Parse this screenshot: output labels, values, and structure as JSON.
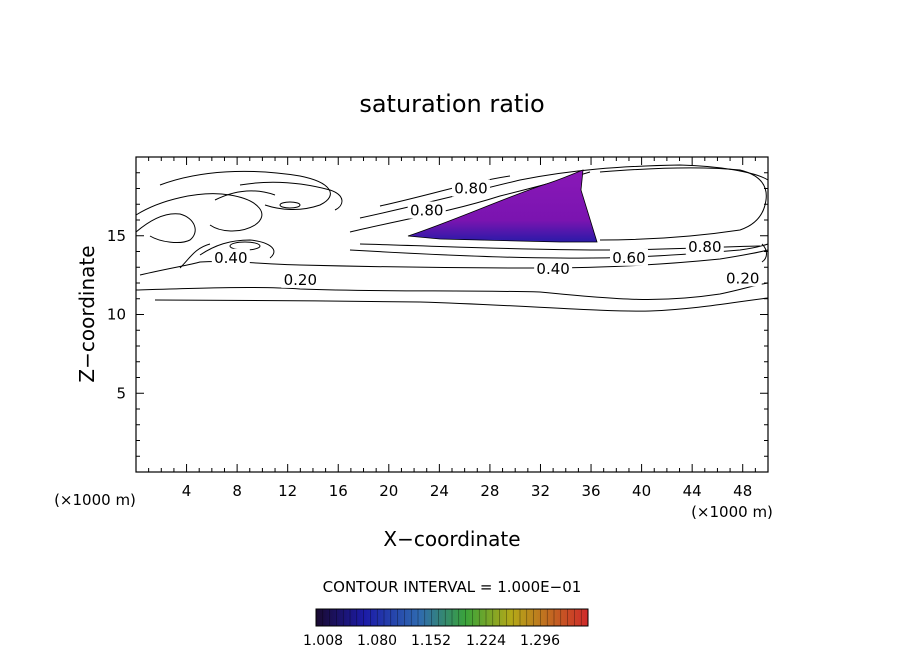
{
  "chart_data": {
    "type": "contour",
    "title": "saturation ratio",
    "xlabel": "X−coordinate",
    "ylabel": "Z−coordinate",
    "x_unit": "(×1000 m)",
    "x_unit_right": "(×1000 m)",
    "xlim": [
      0,
      50
    ],
    "ylim": [
      0,
      20
    ],
    "x_ticks": [
      "4",
      "8",
      "12",
      "16",
      "20",
      "24",
      "28",
      "32",
      "36",
      "40",
      "44",
      "48"
    ],
    "y_ticks": [
      "5",
      "10",
      "15"
    ],
    "contour_interval_text": "CONTOUR INTERVAL = 1.000E−01",
    "contour_labels": [
      {
        "text": "0.20",
        "x": 13,
        "z": 12.2
      },
      {
        "text": "0.40",
        "x": 7.5,
        "z": 13.6
      },
      {
        "text": "0.40",
        "x": 33,
        "z": 12.9
      },
      {
        "text": "0.60",
        "x": 39,
        "z": 13.6
      },
      {
        "text": "0.80",
        "x": 45,
        "z": 14.3
      },
      {
        "text": "0.20",
        "x": 48,
        "z": 12.3
      },
      {
        "text": "0.80",
        "x": 23,
        "z": 16.6
      },
      {
        "text": "0.80",
        "x": 26.5,
        "z": 18.0
      }
    ],
    "shaded_region": {
      "description_values": "supersaturated region (ratio > 1)",
      "polygon_xz": [
        [
          21.5,
          15.0
        ],
        [
          28.0,
          16.8
        ],
        [
          33.0,
          18.2
        ],
        [
          35.5,
          19.0
        ],
        [
          35.6,
          17.5
        ],
        [
          36.5,
          14.5
        ],
        [
          28.0,
          14.5
        ],
        [
          21.5,
          15.0
        ]
      ],
      "color": "#8a18b8"
    },
    "colorbar": {
      "labels": [
        "1.008",
        "1.080",
        "1.152",
        "1.224",
        "1.296"
      ],
      "colors": [
        "#1a0a40",
        "#1c1ca8",
        "#2f6ab0",
        "#3aa33a",
        "#b4a818",
        "#c82a2a"
      ]
    },
    "grid": false
  }
}
